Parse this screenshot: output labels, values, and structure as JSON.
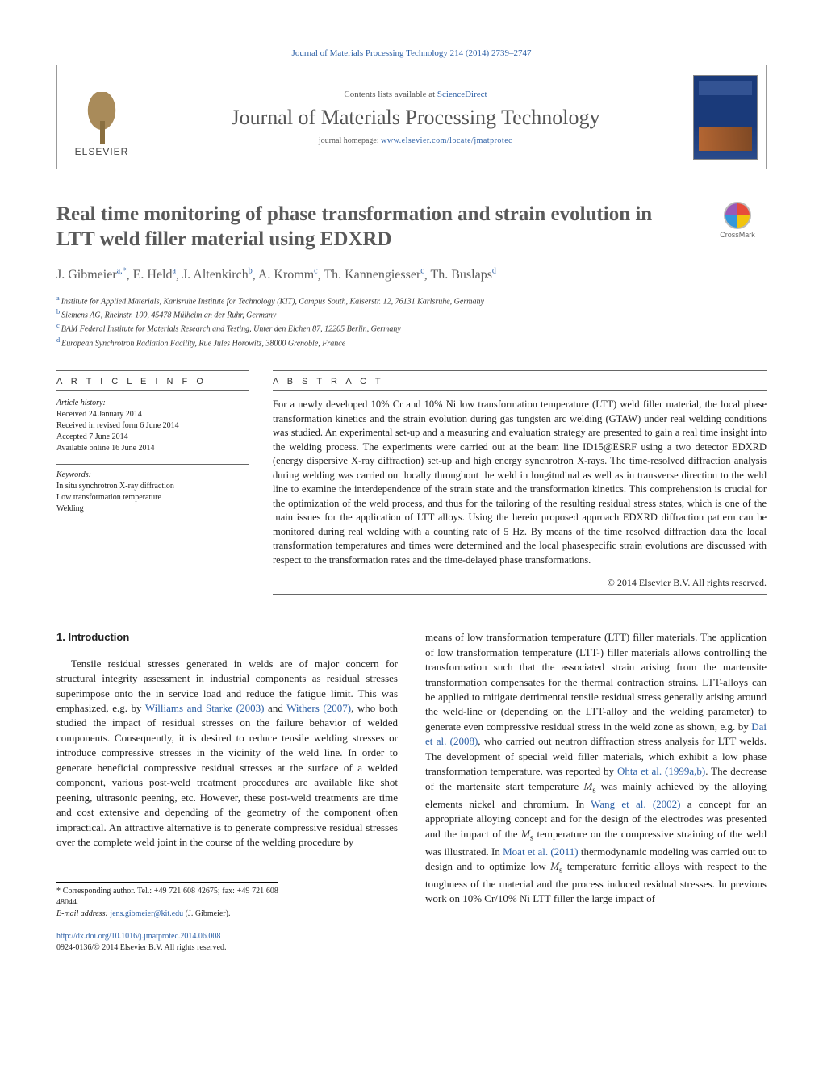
{
  "header": {
    "citation_line": "Journal of Materials Processing Technology 214 (2014) 2739–2747",
    "contents_prefix": "Contents lists available at ",
    "contents_link": "ScienceDirect",
    "journal_title": "Journal of Materials Processing Technology",
    "homepage_prefix": "journal homepage: ",
    "homepage_link": "www.elsevier.com/locate/jmatprotec",
    "publisher_text": "ELSEVIER"
  },
  "crossmark_label": "CrossMark",
  "article": {
    "title": "Real time monitoring of phase transformation and strain evolution in LTT weld filler material using EDXRD",
    "authors_html": "J. Gibmeier",
    "authors": [
      {
        "name": "J. Gibmeier",
        "marks": "a,*"
      },
      {
        "name": "E. Held",
        "marks": "a"
      },
      {
        "name": "J. Altenkirch",
        "marks": "b"
      },
      {
        "name": "A. Kromm",
        "marks": "c"
      },
      {
        "name": "Th. Kannengiesser",
        "marks": "c"
      },
      {
        "name": "Th. Buslaps",
        "marks": "d"
      }
    ],
    "affiliations": [
      {
        "mark": "a",
        "text": "Institute for Applied Materials, Karlsruhe Institute for Technology (KIT), Campus South, Kaiserstr. 12, 76131 Karlsruhe, Germany"
      },
      {
        "mark": "b",
        "text": "Siemens AG, Rheinstr. 100, 45478 Mülheim an der Ruhr, Germany"
      },
      {
        "mark": "c",
        "text": "BAM Federal Institute for Materials Research and Testing, Unter den Eichen 87, 12205 Berlin, Germany"
      },
      {
        "mark": "d",
        "text": "European Synchrotron Radiation Facility, Rue Jules Horowitz, 38000 Grenoble, France"
      }
    ]
  },
  "info": {
    "heading": "a r t i c l e   i n f o",
    "history_label": "Article history:",
    "history": [
      "Received 24 January 2014",
      "Received in revised form 6 June 2014",
      "Accepted 7 June 2014",
      "Available online 16 June 2014"
    ],
    "keywords_label": "Keywords:",
    "keywords": [
      "In situ synchrotron X-ray diffraction",
      "Low transformation temperature",
      "Welding"
    ]
  },
  "abstract": {
    "heading": "a b s t r a c t",
    "text": "For a newly developed 10% Cr and 10% Ni low transformation temperature (LTT) weld filler material, the local phase transformation kinetics and the strain evolution during gas tungsten arc welding (GTAW) under real welding conditions was studied. An experimental set-up and a measuring and evaluation strategy are presented to gain a real time insight into the welding process. The experiments were carried out at the beam line ID15@ESRF using a two detector EDXRD (energy dispersive X-ray diffraction) set-up and high energy synchrotron X-rays. The time-resolved diffraction analysis during welding was carried out locally throughout the weld in longitudinal as well as in transverse direction to the weld line to examine the interdependence of the strain state and the transformation kinetics. This comprehension is crucial for the optimization of the weld process, and thus for the tailoring of the resulting residual stress states, which is one of the main issues for the application of LTT alloys. Using the herein proposed approach EDXRD diffraction pattern can be monitored during real welding with a counting rate of 5 Hz. By means of the time resolved diffraction data the local transformation temperatures and times were determined and the local phasespecific strain evolutions are discussed with respect to the transformation rates and the time-delayed phase transformations.",
    "copyright": "© 2014 Elsevier B.V. All rights reserved."
  },
  "body": {
    "section_number": "1.",
    "section_title": "Introduction",
    "col1": "Tensile residual stresses generated in welds are of major concern for structural integrity assessment in industrial components as residual stresses superimpose onto the in service load and reduce the fatigue limit. This was emphasized, e.g. by Williams and Starke (2003) and Withers (2007), who both studied the impact of residual stresses on the failure behavior of welded components. Consequently, it is desired to reduce tensile welding stresses or introduce compressive stresses in the vicinity of the weld line. In order to generate beneficial compressive residual stresses at the surface of a welded component, various post-weld treatment procedures are available like shot peening, ultrasonic peening, etc. However, these post-weld treatments are time and cost extensive and depending of the geometry of the component often impractical. An attractive alternative is to generate compressive residual stresses over the complete weld joint in the course of the welding procedure by",
    "col2": "means of low transformation temperature (LTT) filler materials. The application of low transformation temperature (LTT-) filler materials allows controlling the transformation such that the associated strain arising from the martensite transformation compensates for the thermal contraction strains. LTT-alloys can be applied to mitigate detrimental tensile residual stress generally arising around the weld-line or (depending on the LTT-alloy and the welding parameter) to generate even compressive residual stress in the weld zone as shown, e.g. by Dai et al. (2008), who carried out neutron diffraction stress analysis for LTT welds. The development of special weld filler materials, which exhibit a low phase transformation temperature, was reported by Ohta et al. (1999a,b). The decrease of the martensite start temperature Ms was mainly achieved by the alloying elements nickel and chromium. In Wang et al. (2002) a concept for an appropriate alloying concept and for the design of the electrodes was presented and the impact of the Ms temperature on the compressive straining of the weld was illustrated. In Moat et al. (2011) thermodynamic modeling was carried out to design and to optimize low Ms temperature ferritic alloys with respect to the toughness of the material and the process induced residual stresses. In previous work on 10% Cr/10% Ni LTT filler the large impact of"
  },
  "refs": {
    "r1": "Williams and Starke (2003)",
    "r2": "Withers (2007)",
    "r3": "Dai et al. (2008)",
    "r4": "Ohta et al. (1999a,b)",
    "r5": "Wang et al. (2002)",
    "r6": "Moat et al. (2011)"
  },
  "corresponding": {
    "line": "* Corresponding author. Tel.: +49 721 608 42675; fax: +49 721 608 48044.",
    "email_label": "E-mail address: ",
    "email": "jens.gibmeier@kit.edu",
    "email_suffix": " (J. Gibmeier)."
  },
  "footer": {
    "doi": "http://dx.doi.org/10.1016/j.jmatprotec.2014.06.008",
    "issn_line": "0924-0136/© 2014 Elsevier B.V. All rights reserved."
  },
  "colors": {
    "link": "#2c5fa5",
    "heading_gray": "#5a5a5a",
    "rule": "#666"
  }
}
